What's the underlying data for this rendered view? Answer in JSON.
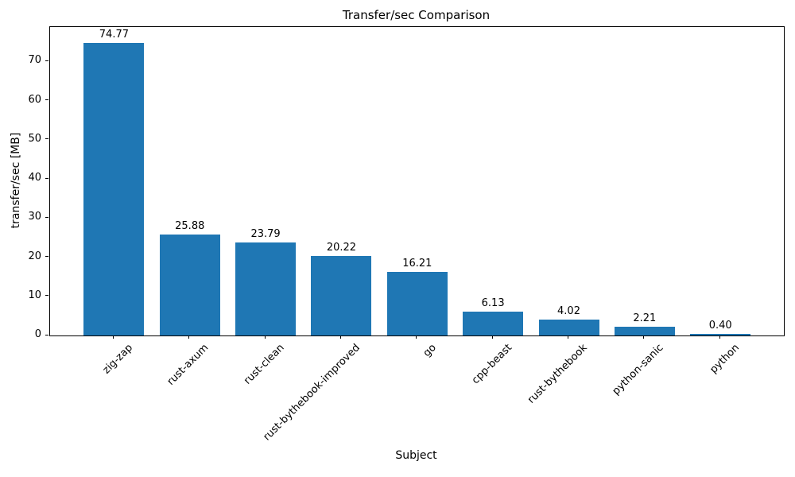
{
  "figure": {
    "background": "#ffffff"
  },
  "chart_data": {
    "type": "bar",
    "title": "Transfer/sec Comparison",
    "xlabel": "Subject",
    "ylabel": "transfer/sec [MB]",
    "categories": [
      "zig-zap",
      "rust-axum",
      "rust-clean",
      "rust-bythebook-improved",
      "go",
      "cpp-beast",
      "rust-bythebook",
      "python-sanic",
      "python"
    ],
    "values": [
      74.77,
      25.88,
      23.79,
      20.22,
      16.21,
      6.13,
      4.02,
      2.21,
      0.4
    ],
    "value_labels": [
      "74.77",
      "25.88",
      "23.79",
      "20.22",
      "16.21",
      "6.13",
      "4.02",
      "2.21",
      "0.40"
    ],
    "bar_color": "#1f77b4",
    "axis_color": "#000000",
    "text_color": "#000000",
    "yticks": [
      0,
      10,
      20,
      30,
      40,
      50,
      60,
      70
    ],
    "ylim": [
      0,
      78.8
    ],
    "grid": false,
    "legend_position": "none",
    "x_tick_rotation_deg": 45
  }
}
